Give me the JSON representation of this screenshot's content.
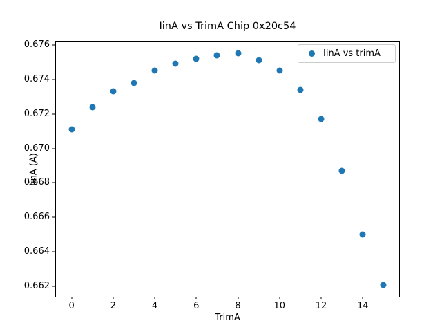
{
  "figure": {
    "background": "#ffffff"
  },
  "chart_data": {
    "type": "scatter",
    "title": "IinA vs TrimA Chip 0x20c54",
    "xlabel": "TrimA",
    "ylabel": "IinA (A)",
    "x": [
      0,
      1,
      2,
      3,
      4,
      5,
      6,
      7,
      8,
      9,
      10,
      11,
      12,
      13,
      14,
      15
    ],
    "y": [
      0.6711,
      0.6724,
      0.6733,
      0.6738,
      0.6745,
      0.6749,
      0.6752,
      0.6754,
      0.6755,
      0.6751,
      0.6745,
      0.6734,
      0.6717,
      0.6687,
      0.665,
      0.6621
    ],
    "series_name": "IinA vs trimA",
    "marker_color": "#1f77b4",
    "xlim": [
      -0.75,
      15.75
    ],
    "ylim": [
      0.6614,
      0.6762
    ],
    "xticks": [
      0,
      2,
      4,
      6,
      8,
      10,
      12,
      14
    ],
    "yticks": [
      0.662,
      0.664,
      0.666,
      0.668,
      0.67,
      0.672,
      0.674,
      0.676
    ],
    "grid": false,
    "legend_position": "upper right"
  },
  "legend": {
    "label": "IinA vs trimA"
  }
}
